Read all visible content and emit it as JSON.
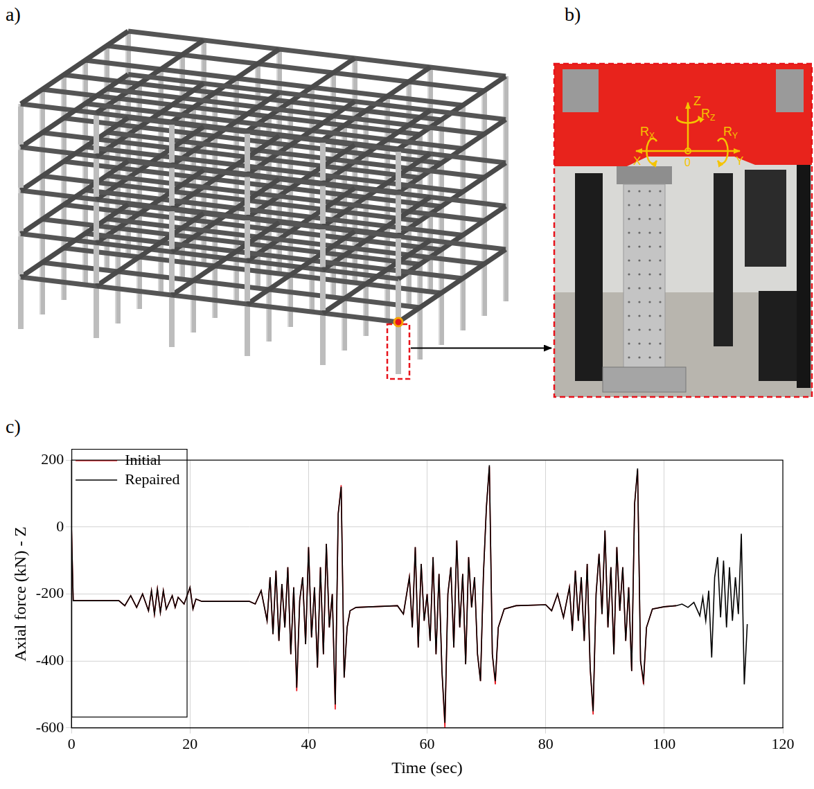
{
  "figure": {
    "panel_a": {
      "letter": "a)"
    },
    "panel_b": {
      "letter": "b)",
      "axes": {
        "origin": "0",
        "x": "X",
        "y": "Y",
        "z": "Z",
        "rx": "RX",
        "ry": "RY",
        "rz": "RZ"
      }
    },
    "panel_c": {
      "letter": "c)"
    }
  },
  "chart_data": {
    "type": "line",
    "x_label": "Time (sec)",
    "y_label": "Axial force (kN) - Z",
    "x": [
      0,
      0.3,
      8,
      9,
      10,
      11,
      12,
      13,
      13.5,
      14,
      14.5,
      15,
      15.5,
      16,
      17,
      17.5,
      18,
      19,
      20,
      20.5,
      21,
      22,
      30,
      31,
      32,
      33,
      33.5,
      34,
      34.5,
      35,
      35.5,
      36,
      36.5,
      37,
      37.5,
      38,
      38.5,
      39,
      39.5,
      40,
      40.5,
      41,
      41.5,
      42,
      42.5,
      43,
      43.5,
      44,
      44.5,
      45,
      45.5,
      46,
      46.5,
      47,
      48,
      55,
      56,
      57,
      57.5,
      58,
      58.5,
      59,
      59.5,
      60,
      60.5,
      61,
      61.5,
      62,
      62.5,
      63,
      63.5,
      64,
      64.5,
      65,
      65.5,
      66,
      66.5,
      67,
      67.5,
      68,
      68.5,
      69,
      69.5,
      70,
      70.5,
      71,
      71.5,
      72,
      73,
      75,
      80,
      81,
      82,
      83,
      84,
      84.5,
      85,
      85.5,
      86,
      86.5,
      87,
      87.5,
      88,
      88.5,
      89,
      89.5,
      90,
      90.5,
      91,
      91.5,
      92,
      92.5,
      93,
      93.5,
      94,
      94.5,
      95,
      95.5,
      96,
      96.5,
      97,
      98,
      100,
      102,
      103,
      104,
      105,
      106,
      106.5,
      107,
      107.5,
      108,
      108.5,
      109,
      109.5,
      110,
      110.5,
      111,
      111.5,
      112,
      112.5,
      113,
      113.5,
      114
    ],
    "series": [
      {
        "name": "Initial",
        "color": "#e8131b",
        "values": [
          0,
          -220,
          -220,
          -235,
          -205,
          -240,
          -200,
          -250,
          -190,
          -260,
          -185,
          -255,
          -190,
          -245,
          -205,
          -240,
          -210,
          -230,
          -180,
          -245,
          -215,
          -222,
          -222,
          -230,
          -190,
          -280,
          -150,
          -320,
          -130,
          -340,
          -170,
          -300,
          -120,
          -380,
          -180,
          -490,
          -220,
          -150,
          -350,
          -60,
          -330,
          -180,
          -420,
          -120,
          -380,
          -50,
          -300,
          -200,
          -545,
          40,
          125,
          -450,
          -300,
          -250,
          -240,
          -235,
          -260,
          -150,
          -300,
          -60,
          -360,
          -110,
          -280,
          -200,
          -340,
          -90,
          -380,
          -140,
          -430,
          -600,
          -200,
          -120,
          -360,
          -40,
          -300,
          -140,
          -410,
          -90,
          -240,
          -150,
          -380,
          -460,
          -140,
          60,
          180,
          -380,
          -470,
          -300,
          -245,
          -235,
          -232,
          -250,
          -200,
          -270,
          -180,
          -310,
          -130,
          -280,
          -150,
          -340,
          -110,
          -420,
          -560,
          -200,
          -80,
          -260,
          -10,
          -300,
          -120,
          -380,
          -60,
          -250,
          -120,
          -340,
          -180,
          -430,
          70,
          170,
          -400,
          -470,
          -300,
          -245,
          -238,
          -235,
          null,
          null,
          null,
          null,
          null,
          null,
          null,
          null,
          null,
          null,
          null,
          null,
          null,
          null,
          null,
          null,
          null,
          null,
          null,
          null
        ]
      },
      {
        "name": "Repaired",
        "color": "#000000",
        "values": [
          0,
          -220,
          -220,
          -235,
          -205,
          -240,
          -200,
          -250,
          -190,
          -260,
          -185,
          -255,
          -190,
          -245,
          -205,
          -240,
          -210,
          -230,
          -180,
          -245,
          -215,
          -222,
          -222,
          -230,
          -190,
          -280,
          -150,
          -320,
          -130,
          -340,
          -170,
          -300,
          -120,
          -380,
          -180,
          -480,
          -220,
          -150,
          -350,
          -60,
          -330,
          -180,
          -420,
          -120,
          -380,
          -50,
          -300,
          -200,
          -530,
          40,
          120,
          -450,
          -300,
          -250,
          -240,
          -235,
          -260,
          -150,
          -300,
          -60,
          -360,
          -110,
          -280,
          -200,
          -340,
          -90,
          -380,
          -140,
          -430,
          -585,
          -200,
          -120,
          -360,
          -40,
          -300,
          -140,
          -410,
          -90,
          -240,
          -150,
          -380,
          -460,
          -140,
          60,
          185,
          -380,
          -460,
          -300,
          -245,
          -235,
          -232,
          -250,
          -200,
          -270,
          -180,
          -310,
          -130,
          -280,
          -150,
          -340,
          -110,
          -420,
          -550,
          -200,
          -80,
          -260,
          -10,
          -300,
          -120,
          -380,
          -60,
          -250,
          -120,
          -340,
          -180,
          -430,
          70,
          175,
          -400,
          -460,
          -300,
          -245,
          -238,
          -235,
          -230,
          -240,
          -225,
          -265,
          -210,
          -280,
          -190,
          -390,
          -150,
          -90,
          -270,
          -100,
          -300,
          -120,
          -280,
          -150,
          -260,
          -20,
          -470,
          -290
        ]
      }
    ],
    "xlim": [
      0,
      120
    ],
    "xticks": [
      0,
      20,
      40,
      60,
      80,
      100,
      120
    ],
    "ylim": [
      -600,
      200
    ],
    "yticks": [
      -600,
      -400,
      -200,
      0,
      200
    ],
    "grid": true,
    "legend": "upper left"
  }
}
